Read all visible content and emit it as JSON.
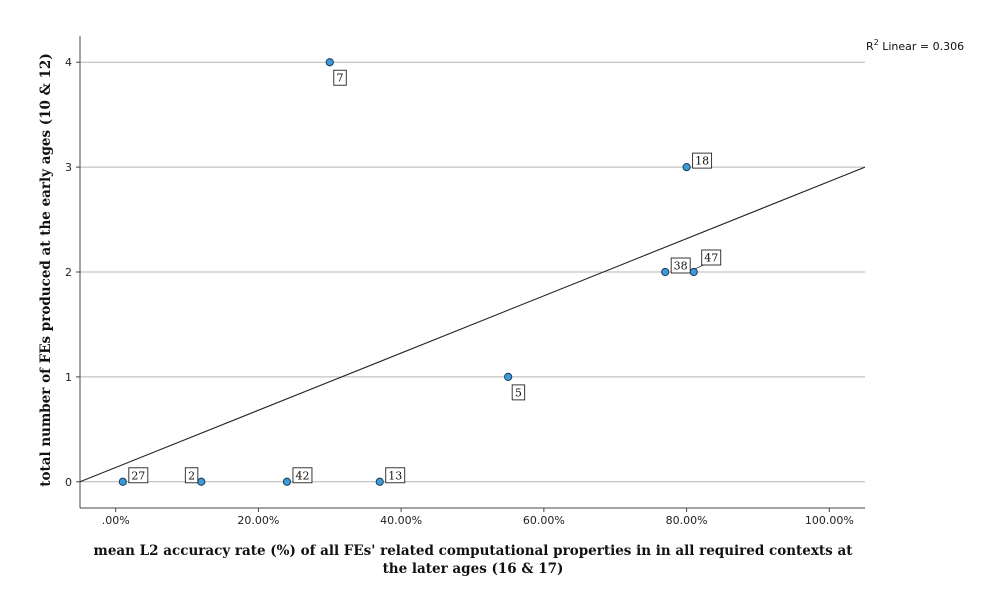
{
  "chart_data": {
    "type": "scatter",
    "xlabel_lines": [
      "mean L2 accuracy rate (%) of all FEs' related computational properties in in all required contexts at",
      "the later ages (16 & 17)"
    ],
    "ylabel": "total number of FEs produced at the early ages (10 & 12)",
    "xlim": [
      -0.05,
      1.05
    ],
    "ylim": [
      -0.25,
      4.25
    ],
    "x_ticks": [
      0,
      0.2,
      0.4,
      0.6,
      0.8,
      1.0
    ],
    "x_tick_labels": [
      ".00%",
      "20.00%",
      "40.00%",
      "60.00%",
      "80.00%",
      "100.00%"
    ],
    "y_ticks": [
      0,
      1,
      2,
      3,
      4
    ],
    "y_tick_labels": [
      "0",
      "1",
      "2",
      "3",
      "4"
    ],
    "grid": "horizontal",
    "points": [
      {
        "id": "7",
        "x": 0.3,
        "y": 4,
        "label_pos": "below-right"
      },
      {
        "id": "18",
        "x": 0.8,
        "y": 3,
        "label_pos": "above-right"
      },
      {
        "id": "38",
        "x": 0.77,
        "y": 2,
        "label_pos": "above-right"
      },
      {
        "id": "47",
        "x": 0.81,
        "y": 2,
        "label_pos": "above-right-far"
      },
      {
        "id": "5",
        "x": 0.55,
        "y": 1,
        "label_pos": "below-right"
      },
      {
        "id": "27",
        "x": 0.01,
        "y": 0,
        "label_pos": "above-right"
      },
      {
        "id": "2",
        "x": 0.12,
        "y": 0,
        "label_pos": "above-left"
      },
      {
        "id": "42",
        "x": 0.24,
        "y": 0,
        "label_pos": "above-right"
      },
      {
        "id": "13",
        "x": 0.37,
        "y": 0,
        "label_pos": "above-right"
      }
    ],
    "fit_line": {
      "type": "linear",
      "x0": -0.05,
      "y0": 0.0,
      "x1": 1.05,
      "y1": 3.0
    },
    "r2_label": {
      "prefix": "R",
      "sup": "2",
      "text": " Linear = 0.306"
    },
    "colors": {
      "point_fill": "#3d9bd9",
      "point_stroke": "#1b3a57",
      "grid": "#b5b5b5",
      "line": "#222222",
      "axis": "#444444"
    }
  }
}
